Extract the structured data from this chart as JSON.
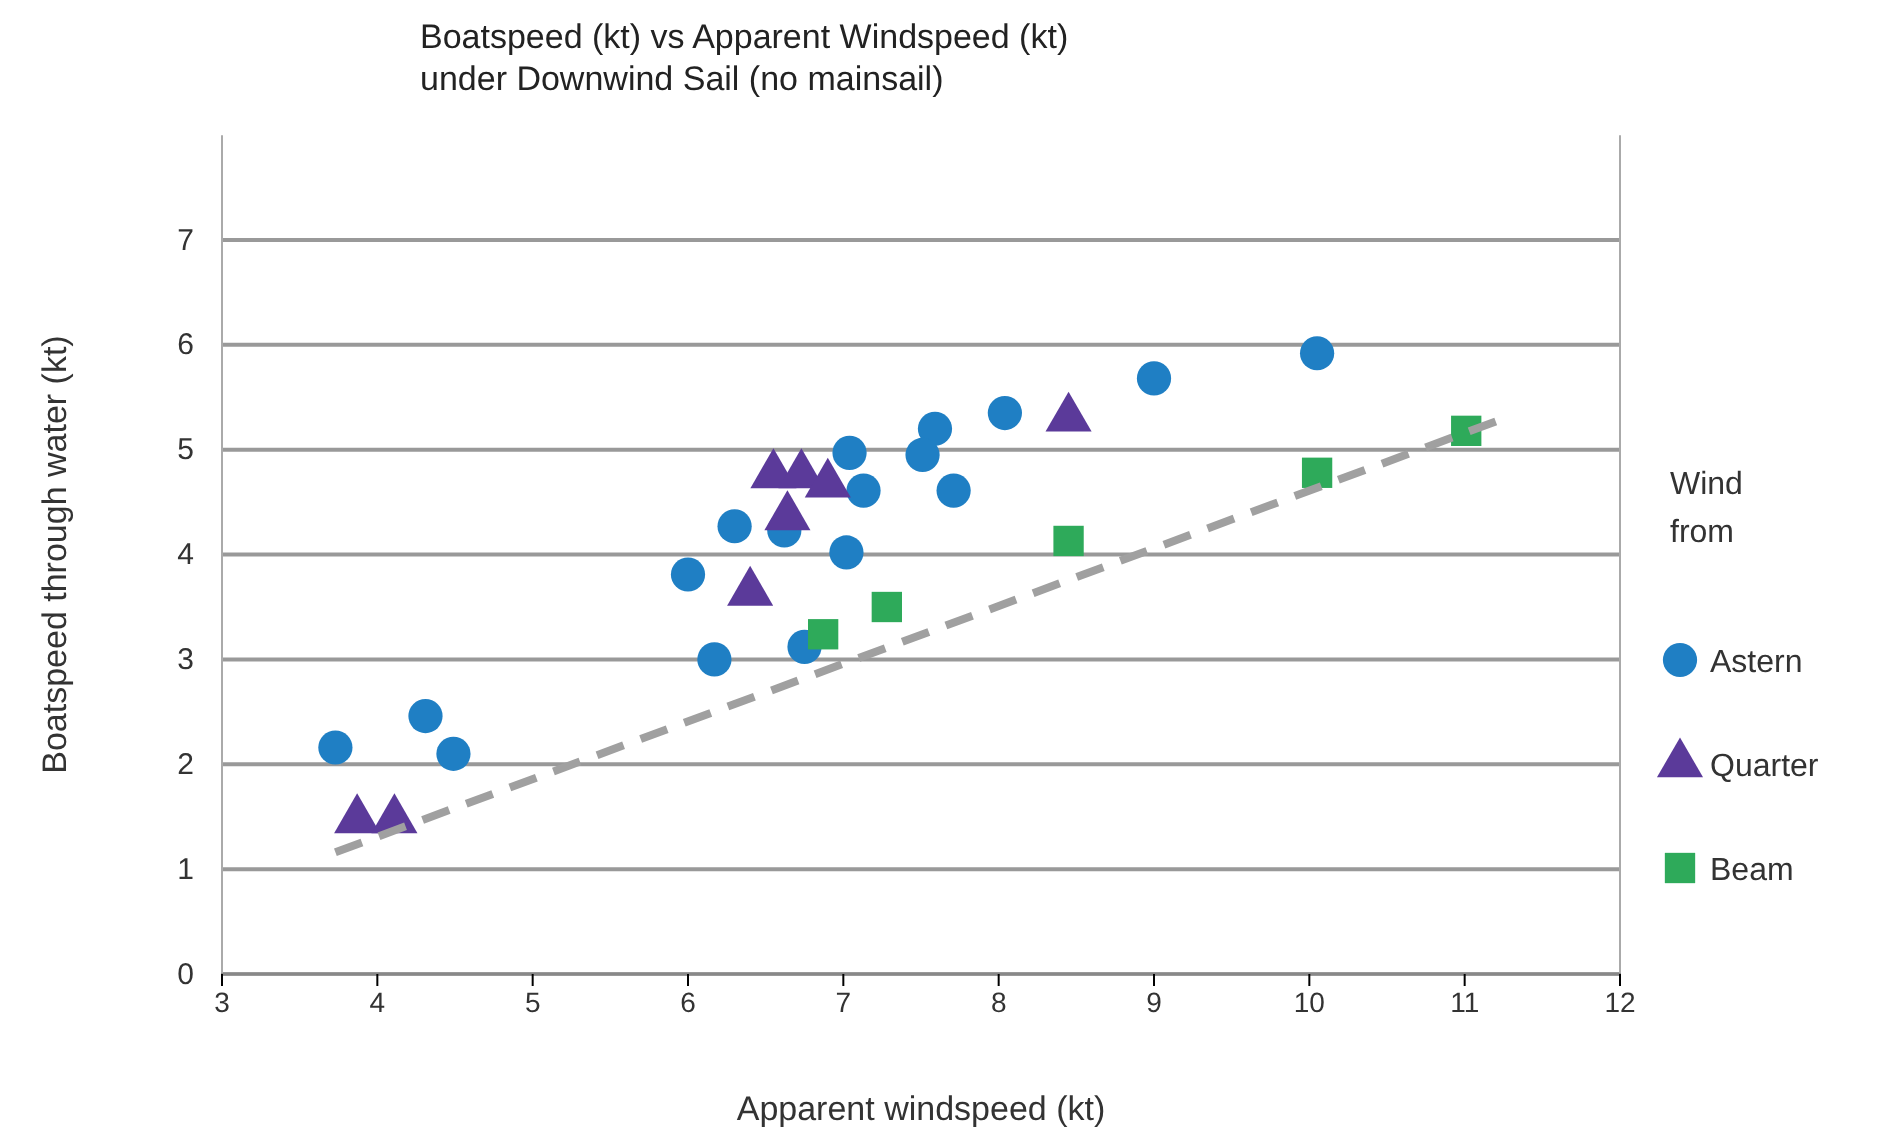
{
  "chart_data": {
    "type": "scatter",
    "title": "Boatspeed (kt) vs Apparent Windspeed (kt)\nunder Downwind Sail (no mainsail)",
    "xlabel": "Apparent windspeed (kt)",
    "ylabel": "Boatspeed through water (kt)",
    "legend_title": "Wind from",
    "legend": "right",
    "grid": "y",
    "xlim": [
      3,
      12
    ],
    "xticks": [
      3,
      4,
      5,
      6,
      7,
      8,
      9,
      10,
      11,
      12
    ],
    "ylim": [
      0,
      8
    ],
    "yticks": [
      0,
      1,
      2,
      3,
      4,
      5,
      6,
      7
    ],
    "series": [
      {
        "name": "Astern",
        "color": "#1f7fc4",
        "marker": "circle",
        "x": [
          3.73,
          4.31,
          4.49,
          6.0,
          6.3,
          6.17,
          6.62,
          6.75,
          7.04,
          7.13,
          7.02,
          7.59,
          7.51,
          7.71,
          8.04,
          9.0,
          10.05
        ],
        "values": [
          2.16,
          2.46,
          2.1,
          3.81,
          4.27,
          3.0,
          4.23,
          3.12,
          4.97,
          4.61,
          4.02,
          5.2,
          4.95,
          4.61,
          5.35,
          5.68,
          5.92
        ]
      },
      {
        "name": "Quarter",
        "color": "#5b3a9a",
        "marker": "triangle",
        "x": [
          3.87,
          4.11,
          6.4,
          6.55,
          6.73,
          6.64,
          6.9,
          8.45
        ],
        "values": [
          1.47,
          1.47,
          3.64,
          4.76,
          4.76,
          4.36,
          4.67,
          5.3
        ]
      },
      {
        "name": "Beam",
        "color": "#2eaa5a",
        "marker": "square",
        "x": [
          6.87,
          7.28,
          8.45,
          10.05,
          11.01
        ],
        "values": [
          3.24,
          3.5,
          4.13,
          4.78,
          5.18
        ]
      },
      {
        "type": "line",
        "color": "#a0a0a0",
        "line_style": "dashed",
        "marker": "none",
        "x": [
          3.73,
          11.2
        ],
        "values": [
          1.16,
          5.27
        ]
      }
    ]
  }
}
